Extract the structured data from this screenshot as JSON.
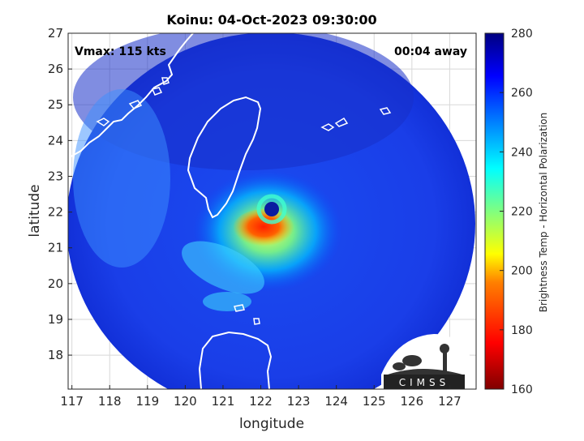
{
  "title": "Koinu: 04-Oct-2023 09:30:00",
  "vmax_label": "Vmax: 115 kts",
  "time_away_label": "00:04 away",
  "axes": {
    "xlabel": "longitude",
    "ylabel": "latitude",
    "xticks": [
      "117",
      "118",
      "119",
      "120",
      "121",
      "122",
      "123",
      "124",
      "125",
      "126",
      "127"
    ],
    "yticks": [
      "18",
      "19",
      "20",
      "21",
      "22",
      "23",
      "24",
      "25",
      "26",
      "27"
    ],
    "xlim": [
      116.9,
      127.7
    ],
    "ylim": [
      17.05,
      27.0
    ]
  },
  "colorbar": {
    "label": "Brightness Temp - Horizontal Polarization",
    "ticks": [
      "160",
      "180",
      "200",
      "220",
      "240",
      "260",
      "280"
    ],
    "range": [
      160,
      280
    ],
    "colormap": [
      "#800000",
      "#ff0000",
      "#ff8000",
      "#ffff00",
      "#80ff80",
      "#00ffff",
      "#0080ff",
      "#0000ff",
      "#000080"
    ]
  },
  "storm": {
    "name": "Koinu",
    "eye_center": [
      122.35,
      22.15
    ],
    "vmax_kts": 115
  },
  "logo": {
    "text": "CIMSS"
  }
}
